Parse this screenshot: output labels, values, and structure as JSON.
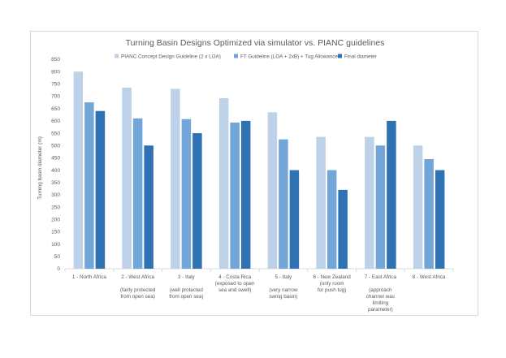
{
  "chart_data": {
    "type": "bar",
    "title": "Turning Basin Designs Optimized via simulator vs. PIANC guidelines",
    "xlabel": "",
    "ylabel": "Turning basin diameter (m)",
    "ylim": [
      0,
      850
    ],
    "ytick_step": 50,
    "yticks": [
      "0",
      "50",
      "100",
      "150",
      "200",
      "250",
      "300",
      "350",
      "400",
      "450",
      "500",
      "550",
      "600",
      "650",
      "700",
      "750",
      "800",
      "850"
    ],
    "grid": false,
    "legend_position": "top",
    "categories": [
      [
        "1 - North Africa"
      ],
      [
        "2 - West Africa",
        "",
        "(fairly protected",
        "from open sea)"
      ],
      [
        "3 - Italy",
        "",
        "(well protected",
        "from open sea)"
      ],
      [
        "4 - Costa Rica",
        "(exposed to open",
        "sea and swell)"
      ],
      [
        "5 - Italy",
        "",
        "(very narrow",
        "swing basin)"
      ],
      [
        "6 - New Zealand",
        "(only room",
        "for push tug)"
      ],
      [
        "7 - East Africa",
        "",
        "(approach",
        "channel was",
        "limiting",
        "parameter)"
      ],
      [
        "8 - West Africa"
      ]
    ],
    "series": [
      {
        "name": "PIANC Concept Design Guideline (2 x LOA)",
        "color": "#bdd1e8",
        "values": [
          800,
          735,
          730,
          692,
          635,
          535,
          535,
          500
        ]
      },
      {
        "name": "FT Guideline (LOA + 2xB) + Tug Allowance",
        "color": "#72a6d8",
        "values": [
          675,
          610,
          607,
          593,
          525,
          400,
          500,
          445
        ]
      },
      {
        "name": "Final diameter",
        "color": "#2f72b3",
        "values": [
          640,
          500,
          550,
          600,
          400,
          320,
          600,
          400
        ]
      }
    ]
  }
}
